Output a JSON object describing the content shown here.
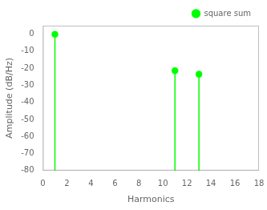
{
  "chart_data": {
    "type": "stem",
    "x": [
      1,
      11,
      13
    ],
    "series": [
      {
        "name": "square sum",
        "color": "#00ff00",
        "values": [
          0,
          -21.5,
          -23.5
        ],
        "marker": "circle"
      }
    ],
    "xlabel": "Harmonics",
    "ylabel": "Amplitude (dB/Hz)",
    "xlim": [
      0,
      18
    ],
    "ylim": [
      -80,
      5
    ],
    "xticks": [
      0,
      2,
      4,
      6,
      8,
      10,
      12,
      14,
      16,
      18
    ],
    "yticks": [
      0,
      -10,
      -20,
      -30,
      -40,
      -50,
      -60,
      -70,
      -80
    ],
    "grid": false,
    "legend": "upper right"
  }
}
